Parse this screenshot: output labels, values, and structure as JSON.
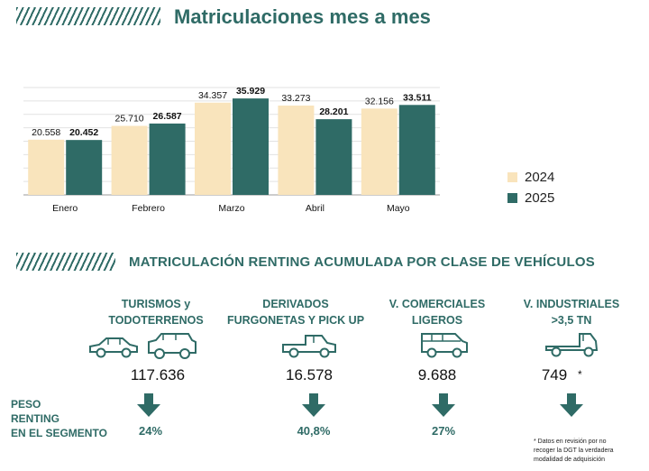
{
  "header": {
    "title": "Matriculaciones mes a mes"
  },
  "chart_data": {
    "type": "bar",
    "categories": [
      "Enero",
      "Febrero",
      "Marzo",
      "Abril",
      "Mayo"
    ],
    "series": [
      {
        "name": "2024",
        "values": [
          20558,
          25710,
          34357,
          33273,
          32156
        ],
        "labels": [
          "20.558",
          "25.710",
          "34.357",
          "33.273",
          "32.156"
        ]
      },
      {
        "name": "2025",
        "values": [
          20452,
          26587,
          35929,
          28201,
          33511
        ],
        "labels": [
          "20.452",
          "26.587",
          "35.929",
          "28.201",
          "33.511"
        ]
      }
    ],
    "ylim": [
      0,
      40000
    ],
    "grid": true,
    "legend_position": "right",
    "colors": {
      "2024": "#f9e4bc",
      "2025": "#2f6b66"
    }
  },
  "section2": {
    "title": "MATRICULACIÓN RENTING ACUMULADA POR CLASE DE VEHÍCULOS",
    "peso_label": [
      "PESO",
      "RENTING",
      "EN EL SEGMENTO"
    ],
    "categories": [
      {
        "label_lines": [
          "TURISMOS y",
          "TODOTERRENOS"
        ],
        "count": "117.636",
        "pct": "24%",
        "icon": "car-suv-icon"
      },
      {
        "label_lines": [
          "DERIVADOS",
          "FURGONETAS Y PICK UP"
        ],
        "count": "16.578",
        "pct": "40,8%",
        "icon": "pickup-icon"
      },
      {
        "label_lines": [
          "V. COMERCIALES",
          "LIGEROS"
        ],
        "count": "9.688",
        "pct": "27%",
        "icon": "van-icon"
      },
      {
        "label_lines": [
          "V. INDUSTRIALES",
          ">3,5 TN"
        ],
        "count": "749",
        "pct": "",
        "icon": "truck-icon"
      }
    ],
    "asterisk": "*",
    "note_lines": [
      "* Datos en revisión por no",
      "recoger la DGT la verdadera",
      "modalidad de adquisición"
    ]
  },
  "colors": {
    "accent": "#2f6b66",
    "light": "#f9e4bc"
  }
}
